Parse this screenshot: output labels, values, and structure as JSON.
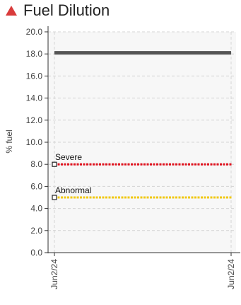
{
  "title": {
    "text": "Fuel Dilution",
    "status_icon": "warning-triangle-icon",
    "status_color": "#d93b3b"
  },
  "chart_data": {
    "type": "line",
    "title": "Fuel Dilution",
    "xlabel": "",
    "ylabel": "% fuel",
    "ylim": [
      0,
      20
    ],
    "y_ticks": [
      "0.0",
      "2.0",
      "4.0",
      "6.0",
      "8.0",
      "10.0",
      "12.0",
      "14.0",
      "16.0",
      "18.0",
      "20.0"
    ],
    "x_ticks": [
      "Jun2/24",
      "Jun2/24"
    ],
    "grid": true,
    "series": [
      {
        "values": [
          18.1,
          18.1
        ],
        "color": "#555555"
      }
    ],
    "thresholds": [
      {
        "label": "Severe",
        "value": 8.0,
        "color": "#e0121e"
      },
      {
        "label": "Abnormal",
        "value": 5.0,
        "color": "#f0c814"
      }
    ]
  }
}
